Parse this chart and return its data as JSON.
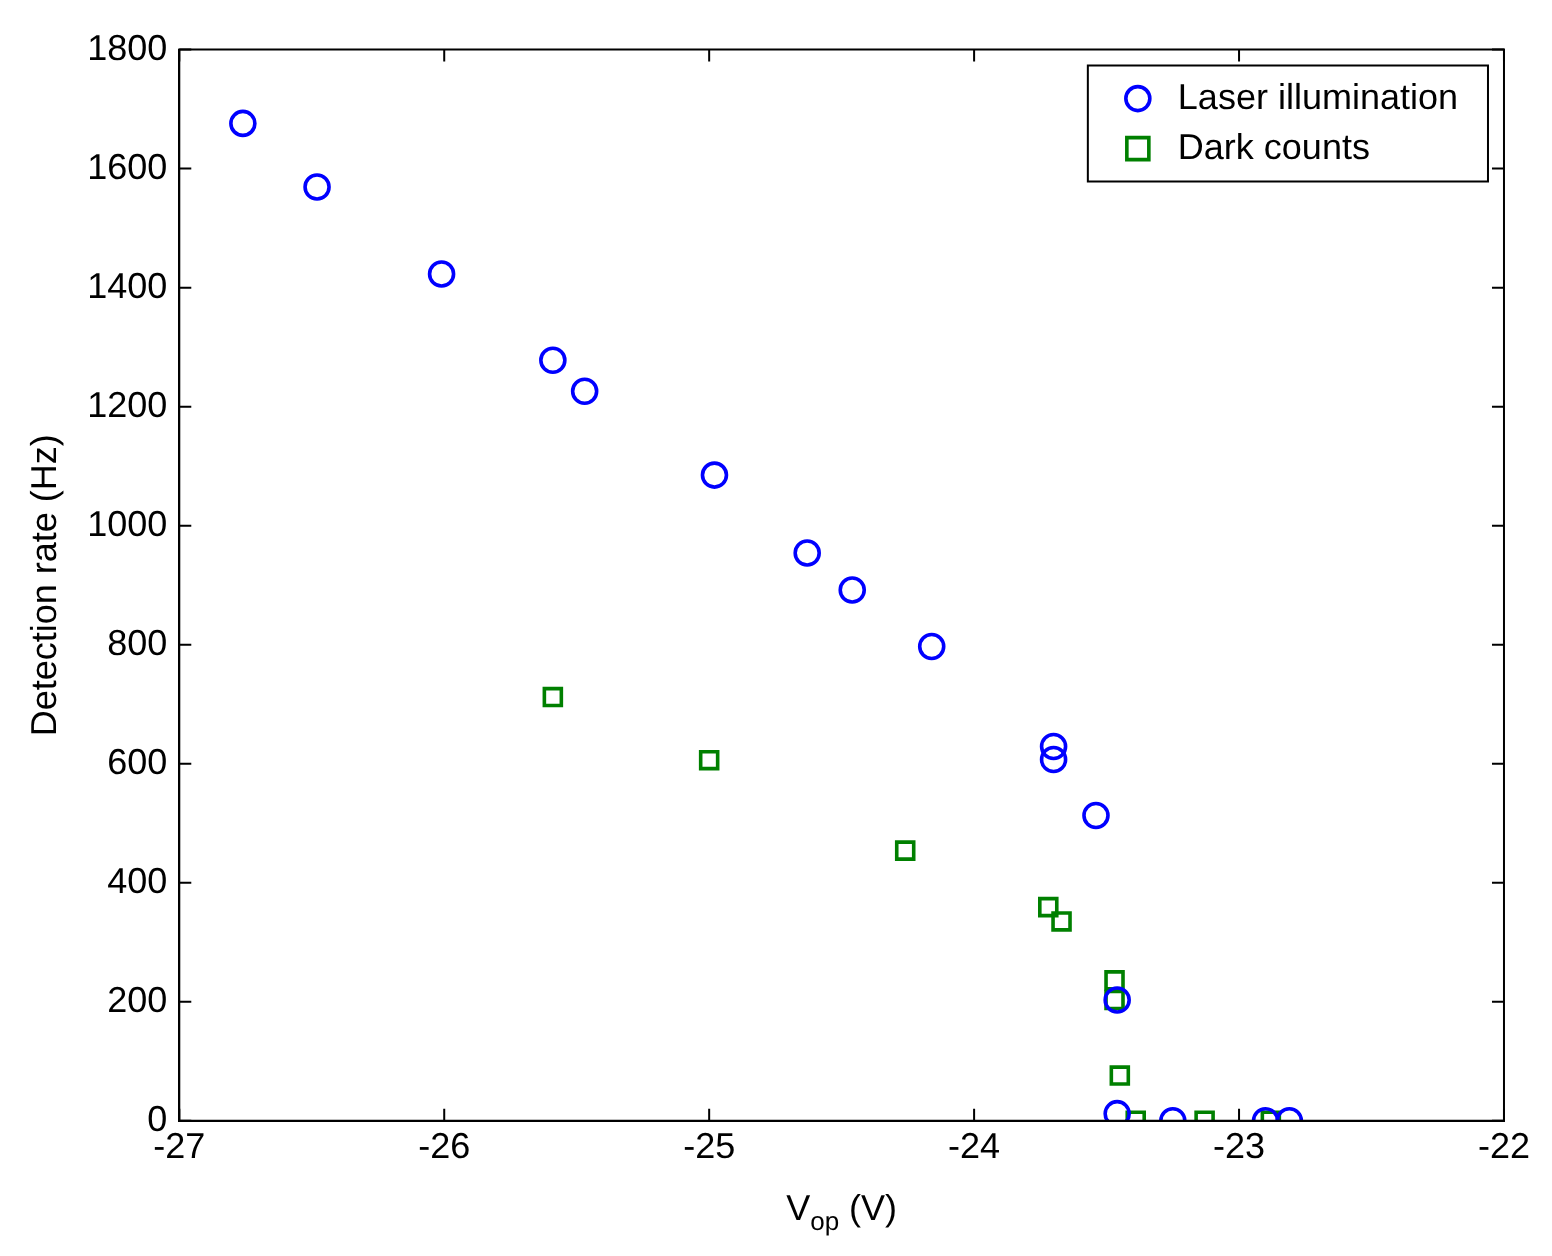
{
  "chart_data": {
    "type": "scatter",
    "xlabel": "V$_{op}$ (V)",
    "ylabel": "Detection rate (Hz)",
    "xlim": [
      -27,
      -22
    ],
    "xticks": [
      -27,
      -26,
      -25,
      -24,
      -23,
      -22
    ],
    "ylim": [
      0,
      1800
    ],
    "yticks": [
      0,
      200,
      400,
      600,
      800,
      1000,
      1200,
      1400,
      1600,
      1800
    ],
    "grid": false,
    "legend": "top right",
    "series": [
      {
        "name": "Laser illumination",
        "color": "#0000ff",
        "marker": "circle",
        "x": [
          -26.76,
          -26.48,
          -26.01,
          -25.59,
          -25.47,
          -24.98,
          -24.63,
          -24.46,
          -24.16,
          -23.7,
          -23.7,
          -23.54,
          -23.46,
          -23.46,
          -23.25,
          -22.9,
          -22.81
        ],
        "values": [
          1676,
          1569,
          1423,
          1278,
          1226,
          1085,
          954,
          892,
          797,
          629,
          607,
          513,
          203,
          12,
          0,
          0,
          0
        ]
      },
      {
        "name": "Dark counts",
        "color": "#008000",
        "marker": "square",
        "x": [
          -25.59,
          -25,
          -24.26,
          -23.72,
          -23.67,
          -23.47,
          -23.47,
          -23.45,
          -23.39,
          -23.13,
          -22.88
        ],
        "values": [
          712,
          606,
          454,
          359,
          335,
          236,
          203,
          76,
          0,
          0,
          0
        ]
      }
    ]
  }
}
